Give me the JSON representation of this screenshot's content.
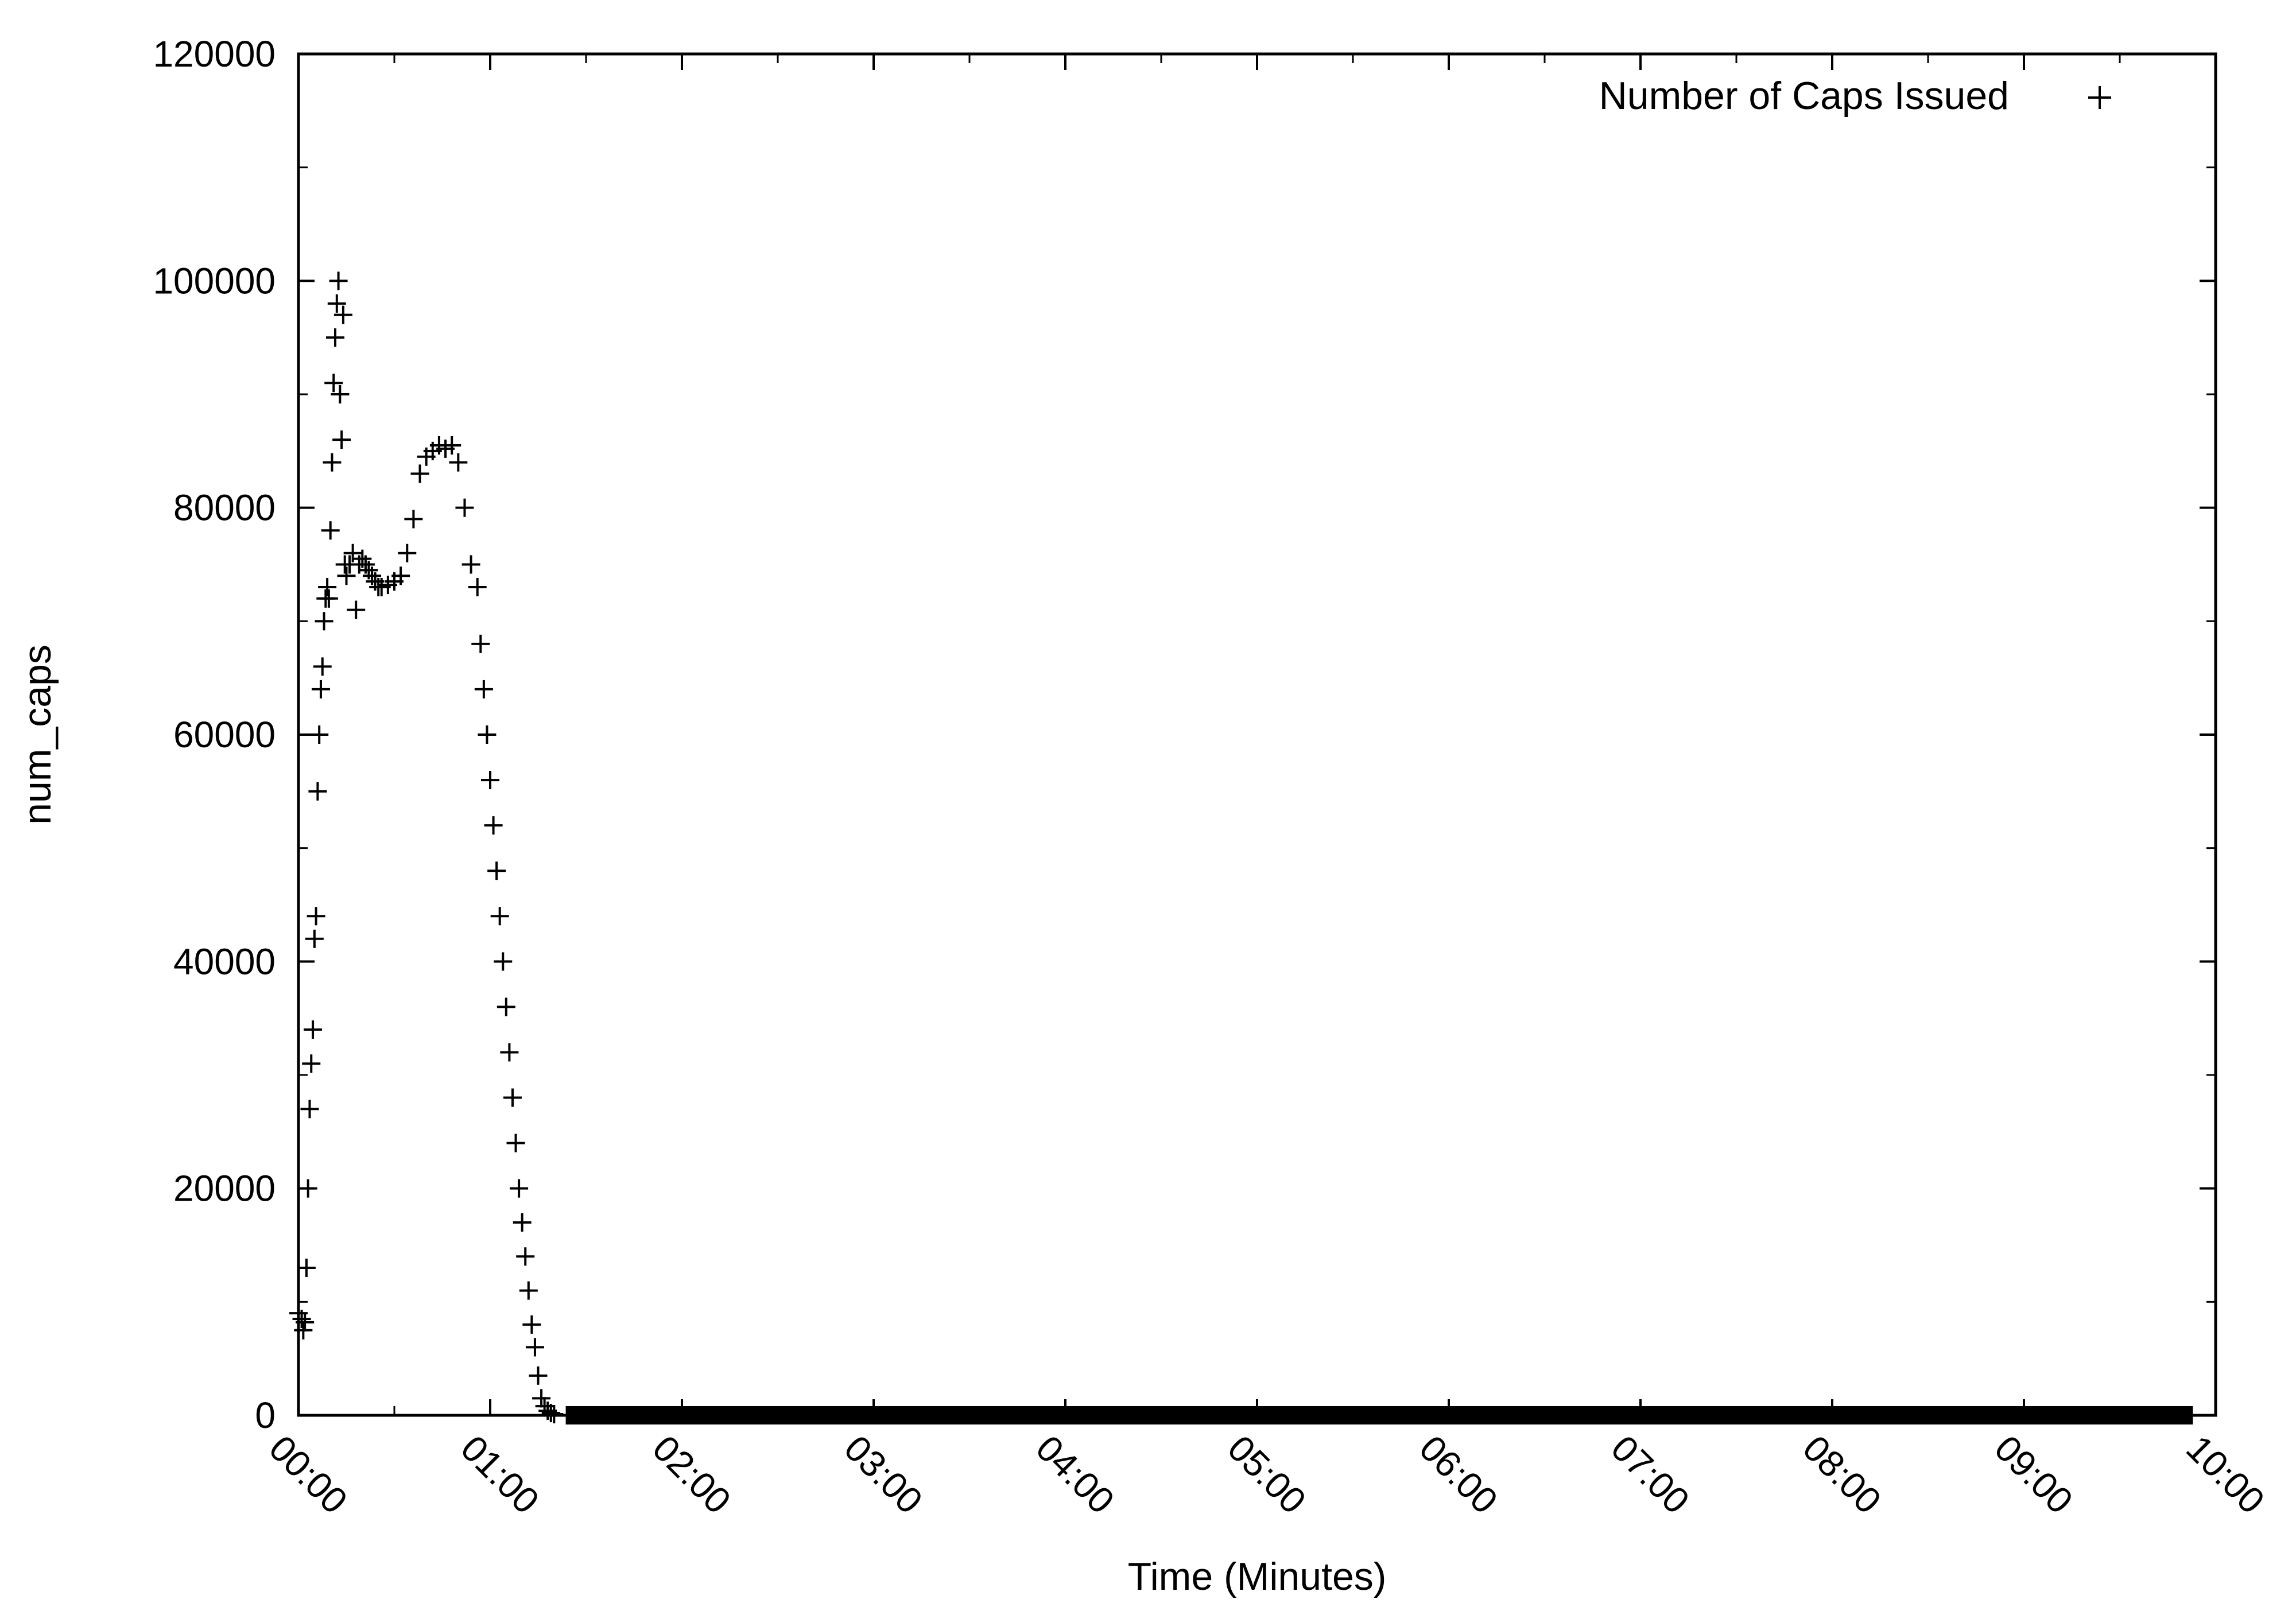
{
  "chart_data": {
    "type": "scatter",
    "title": "",
    "xlabel": "Time (Minutes)",
    "ylabel": "num_caps",
    "xlim": [
      0,
      600
    ],
    "ylim": [
      0,
      120000
    ],
    "x_tick_labels": [
      "00:00",
      "01:00",
      "02:00",
      "03:00",
      "04:00",
      "05:00",
      "06:00",
      "07:00",
      "08:00",
      "09:00",
      "10:00"
    ],
    "x_tick_values": [
      0,
      60,
      120,
      180,
      240,
      300,
      360,
      420,
      480,
      540,
      600
    ],
    "y_tick_labels": [
      "0",
      "20000",
      "40000",
      "60000",
      "80000",
      "100000",
      "120000"
    ],
    "y_tick_values": [
      0,
      20000,
      40000,
      60000,
      80000,
      100000,
      120000
    ],
    "grid": false,
    "legend_position": "top-right",
    "marker": "+",
    "series": [
      {
        "name": "Number of Caps Issued",
        "x": [
          0,
          1,
          1.5,
          2,
          2.5,
          3,
          3.5,
          4,
          4.5,
          5,
          5.5,
          6,
          6.5,
          7,
          7.5,
          8,
          8.5,
          9,
          9.5,
          10,
          10.5,
          11,
          11.5,
          12,
          12.5,
          13,
          13.5,
          14,
          14.5,
          15,
          16,
          17,
          18,
          19,
          20,
          21,
          22,
          23,
          24,
          25,
          26,
          28,
          30,
          32,
          34,
          36,
          38,
          40,
          42,
          44,
          46,
          48,
          50,
          52,
          54,
          56,
          57,
          58,
          59,
          60,
          61,
          62,
          63,
          64,
          65,
          66,
          67,
          68,
          69,
          70,
          71,
          72,
          73,
          74,
          75,
          76,
          77,
          78,
          79,
          80,
          84,
          90,
          100,
          120,
          150,
          180,
          210,
          240,
          270,
          300,
          330,
          360,
          390,
          420,
          450,
          480,
          510,
          540,
          570,
          590
        ],
        "y": [
          9000,
          8500,
          7500,
          8200,
          13000,
          20000,
          27000,
          31000,
          34000,
          42000,
          44000,
          55000,
          60000,
          64000,
          66000,
          70000,
          72000,
          73000,
          72000,
          78000,
          84000,
          91000,
          95000,
          98000,
          100000,
          90000,
          86000,
          97000,
          75000,
          74000,
          75000,
          76000,
          71000,
          75000,
          75500,
          75000,
          74500,
          74000,
          73500,
          73000,
          73000,
          73200,
          73500,
          74000,
          76000,
          79000,
          83000,
          84500,
          85000,
          85500,
          85200,
          85500,
          84000,
          80000,
          75000,
          73000,
          68000,
          64000,
          60000,
          56000,
          52000,
          48000,
          44000,
          40000,
          36000,
          32000,
          28000,
          24000,
          20000,
          17000,
          14000,
          11000,
          8000,
          6000,
          3500,
          1500,
          800,
          400,
          200,
          100,
          0,
          0,
          0,
          0,
          0,
          0,
          0,
          0,
          0,
          0,
          0,
          0,
          0,
          0,
          0,
          0,
          0,
          0,
          0,
          0
        ]
      }
    ]
  }
}
